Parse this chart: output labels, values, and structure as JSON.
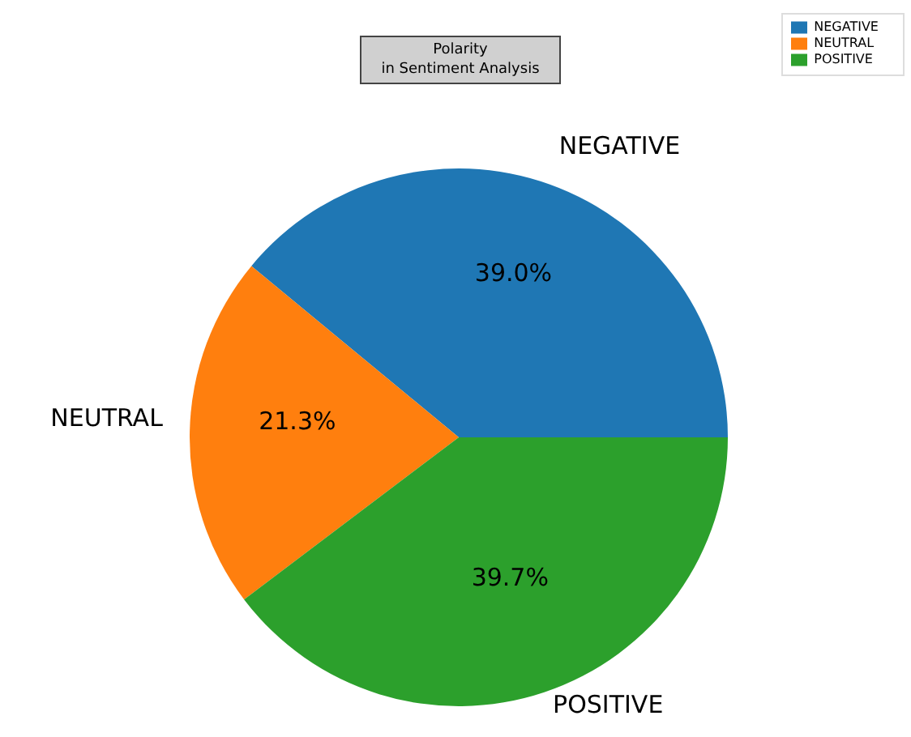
{
  "chart_data": {
    "type": "pie",
    "title": "Polarity\nin Sentiment Analysis",
    "categories": [
      "NEGATIVE",
      "NEUTRAL",
      "POSITIVE"
    ],
    "values": [
      39.0,
      21.3,
      39.7
    ],
    "colors": [
      "#1f77b4",
      "#ff7f0e",
      "#2ca02c"
    ],
    "value_labels": [
      "39.0%",
      "21.3%",
      "39.7%"
    ],
    "legend": "top right"
  }
}
